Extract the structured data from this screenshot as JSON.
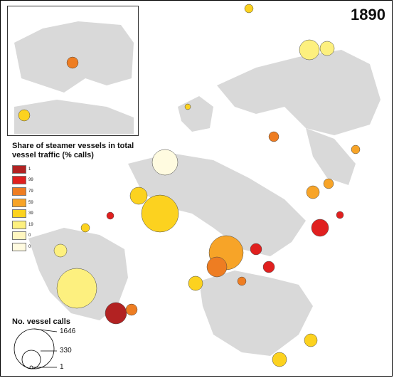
{
  "year": "1890",
  "legend": {
    "share_title": "Share of steamer vessels in total vessel traffic (% calls)",
    "classes": [
      {
        "label": "1",
        "color": "#b22222"
      },
      {
        "label": "99",
        "color": "#e0201f"
      },
      {
        "label": "79",
        "color": "#ee7d22"
      },
      {
        "label": "59",
        "color": "#f7a428"
      },
      {
        "label": "39",
        "color": "#fcd21f"
      },
      {
        "label": "19",
        "color": "#fdf07f"
      },
      {
        "label": "0",
        "color": "#fff6c0"
      },
      {
        "label": "0",
        "color": "#fffbe0"
      }
    ],
    "calls_title": "No. vessel calls",
    "calls_values": [
      "1646",
      "330",
      "1"
    ]
  },
  "colors": {
    "land": "#d9d9d9",
    "ocean": "#ffffff"
  }
}
